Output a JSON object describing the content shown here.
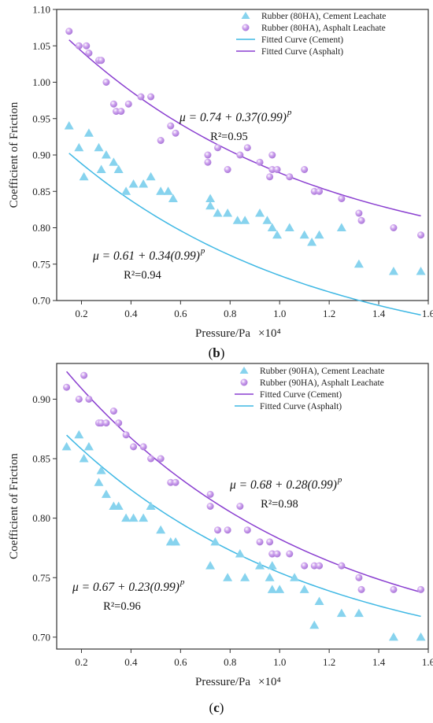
{
  "colors": {
    "cement": "#87d3ee",
    "asphalt": "#cfa5ee",
    "asphalt_line": "#8a3fd0",
    "cement_line": "#3fb8e4"
  },
  "chart_data": [
    {
      "type": "scatter",
      "panel_label": "b",
      "xlabel": "Pressure/Pa",
      "xlabel_scale": "×10⁴",
      "ylabel": "Coefficient of Friction",
      "xlim": [
        0.1,
        1.6
      ],
      "ylim": [
        0.7,
        1.1
      ],
      "xticks": [
        "0.2",
        "0.4",
        "0.6",
        "0.8",
        "1.0",
        "1.2",
        "1.4",
        "1.6"
      ],
      "yticks": [
        "0.70",
        "0.75",
        "0.80",
        "0.85",
        "0.90",
        "0.95",
        "1.00",
        "1.05",
        "1.10"
      ],
      "legend_position": "top-right",
      "series": [
        {
          "name": "Rubber (80HA), Cement Leachate",
          "marker": "triangle",
          "color_key": "cement",
          "points": [
            [
              0.15,
              0.94
            ],
            [
              0.19,
              0.91
            ],
            [
              0.21,
              0.87
            ],
            [
              0.23,
              0.93
            ],
            [
              0.27,
              0.91
            ],
            [
              0.28,
              0.88
            ],
            [
              0.3,
              0.9
            ],
            [
              0.33,
              0.89
            ],
            [
              0.35,
              0.88
            ],
            [
              0.38,
              0.85
            ],
            [
              0.41,
              0.86
            ],
            [
              0.45,
              0.86
            ],
            [
              0.48,
              0.87
            ],
            [
              0.52,
              0.85
            ],
            [
              0.55,
              0.85
            ],
            [
              0.57,
              0.84
            ],
            [
              0.72,
              0.84
            ],
            [
              0.72,
              0.83
            ],
            [
              0.75,
              0.82
            ],
            [
              0.79,
              0.82
            ],
            [
              0.83,
              0.81
            ],
            [
              0.86,
              0.81
            ],
            [
              0.92,
              0.82
            ],
            [
              0.95,
              0.81
            ],
            [
              0.97,
              0.8
            ],
            [
              0.99,
              0.79
            ],
            [
              1.04,
              0.8
            ],
            [
              1.1,
              0.79
            ],
            [
              1.13,
              0.78
            ],
            [
              1.16,
              0.79
            ],
            [
              1.25,
              0.8
            ],
            [
              1.32,
              0.75
            ],
            [
              1.46,
              0.74
            ],
            [
              1.57,
              0.74
            ]
          ]
        },
        {
          "name": "Rubber (80HA), Asphalt Leachate",
          "marker": "sphere",
          "color_key": "asphalt",
          "points": [
            [
              0.15,
              1.07
            ],
            [
              0.19,
              1.05
            ],
            [
              0.22,
              1.05
            ],
            [
              0.23,
              1.04
            ],
            [
              0.27,
              1.03
            ],
            [
              0.28,
              1.03
            ],
            [
              0.3,
              1.0
            ],
            [
              0.33,
              0.97
            ],
            [
              0.34,
              0.96
            ],
            [
              0.36,
              0.96
            ],
            [
              0.39,
              0.97
            ],
            [
              0.44,
              0.98
            ],
            [
              0.48,
              0.98
            ],
            [
              0.52,
              0.92
            ],
            [
              0.56,
              0.94
            ],
            [
              0.58,
              0.93
            ],
            [
              0.71,
              0.89
            ],
            [
              0.71,
              0.9
            ],
            [
              0.75,
              0.91
            ],
            [
              0.79,
              0.88
            ],
            [
              0.84,
              0.9
            ],
            [
              0.87,
              0.91
            ],
            [
              0.92,
              0.89
            ],
            [
              0.96,
              0.87
            ],
            [
              0.97,
              0.9
            ],
            [
              0.97,
              0.88
            ],
            [
              0.99,
              0.88
            ],
            [
              1.04,
              0.87
            ],
            [
              1.1,
              0.88
            ],
            [
              1.14,
              0.85
            ],
            [
              1.16,
              0.85
            ],
            [
              1.25,
              0.84
            ],
            [
              1.32,
              0.82
            ],
            [
              1.33,
              0.81
            ],
            [
              1.46,
              0.8
            ],
            [
              1.57,
              0.79
            ]
          ]
        }
      ],
      "fits": [
        {
          "name": "Fitted Curve (Cement)",
          "color_key": "cement_line",
          "a": 0.61,
          "b": 0.34,
          "c": 0.99,
          "equation": "μ = 0.61 + 0.34(0.99)",
          "exponent": "p",
          "r2_label": "R²=0.94"
        },
        {
          "name": "Fitted Curve (Asphalt)",
          "color_key": "asphalt_line",
          "a": 0.74,
          "b": 0.37,
          "c": 0.99,
          "equation": "μ = 0.74 + 0.37(0.99)",
          "exponent": "p",
          "r2_label": "R²=0.95"
        }
      ]
    },
    {
      "type": "scatter",
      "panel_label": "c",
      "xlabel": "Pressure/Pa",
      "xlabel_scale": "×10⁴",
      "ylabel": "Coefficient of Friction",
      "xlim": [
        0.1,
        1.6
      ],
      "ylim": [
        0.69,
        0.93
      ],
      "xticks": [
        "0.2",
        "0.4",
        "0.6",
        "0.8",
        "1.0",
        "1.2",
        "1.4",
        "1.6"
      ],
      "yticks": [
        "0.70",
        "0.75",
        "0.80",
        "0.85",
        "0.90"
      ],
      "legend_position": "top-right",
      "series": [
        {
          "name": "Rubber (90HA), Cement Leachate",
          "marker": "triangle",
          "color_key": "cement",
          "points": [
            [
              0.14,
              0.86
            ],
            [
              0.19,
              0.87
            ],
            [
              0.21,
              0.85
            ],
            [
              0.23,
              0.86
            ],
            [
              0.27,
              0.83
            ],
            [
              0.28,
              0.84
            ],
            [
              0.3,
              0.82
            ],
            [
              0.33,
              0.81
            ],
            [
              0.35,
              0.81
            ],
            [
              0.38,
              0.8
            ],
            [
              0.41,
              0.8
            ],
            [
              0.45,
              0.8
            ],
            [
              0.48,
              0.81
            ],
            [
              0.52,
              0.79
            ],
            [
              0.56,
              0.78
            ],
            [
              0.58,
              0.78
            ],
            [
              0.72,
              0.76
            ],
            [
              0.74,
              0.78
            ],
            [
              0.79,
              0.75
            ],
            [
              0.84,
              0.77
            ],
            [
              0.86,
              0.75
            ],
            [
              0.92,
              0.76
            ],
            [
              0.96,
              0.75
            ],
            [
              0.97,
              0.76
            ],
            [
              0.97,
              0.74
            ],
            [
              1.0,
              0.74
            ],
            [
              1.06,
              0.75
            ],
            [
              1.1,
              0.74
            ],
            [
              1.14,
              0.71
            ],
            [
              1.16,
              0.73
            ],
            [
              1.25,
              0.72
            ],
            [
              1.32,
              0.72
            ],
            [
              1.46,
              0.7
            ],
            [
              1.57,
              0.7
            ]
          ]
        },
        {
          "name": "Rubber (90HA), Asphalt Leachate",
          "marker": "sphere",
          "color_key": "asphalt",
          "points": [
            [
              0.14,
              0.91
            ],
            [
              0.19,
              0.9
            ],
            [
              0.21,
              0.92
            ],
            [
              0.23,
              0.9
            ],
            [
              0.27,
              0.88
            ],
            [
              0.28,
              0.88
            ],
            [
              0.3,
              0.88
            ],
            [
              0.33,
              0.89
            ],
            [
              0.35,
              0.88
            ],
            [
              0.38,
              0.87
            ],
            [
              0.41,
              0.86
            ],
            [
              0.45,
              0.86
            ],
            [
              0.48,
              0.85
            ],
            [
              0.52,
              0.85
            ],
            [
              0.56,
              0.83
            ],
            [
              0.58,
              0.83
            ],
            [
              0.72,
              0.81
            ],
            [
              0.72,
              0.82
            ],
            [
              0.75,
              0.79
            ],
            [
              0.79,
              0.79
            ],
            [
              0.84,
              0.81
            ],
            [
              0.87,
              0.79
            ],
            [
              0.92,
              0.78
            ],
            [
              0.96,
              0.78
            ],
            [
              0.97,
              0.77
            ],
            [
              0.97,
              0.77
            ],
            [
              0.99,
              0.77
            ],
            [
              1.04,
              0.77
            ],
            [
              1.1,
              0.76
            ],
            [
              1.14,
              0.76
            ],
            [
              1.16,
              0.76
            ],
            [
              1.25,
              0.76
            ],
            [
              1.32,
              0.75
            ],
            [
              1.33,
              0.74
            ],
            [
              1.46,
              0.74
            ],
            [
              1.57,
              0.74
            ]
          ]
        }
      ],
      "fits": [
        {
          "name": "Fitted Curve (Cement)",
          "color_key": "asphalt_line",
          "a": 0.68,
          "b": 0.28,
          "c": 0.99,
          "equation": "μ = 0.68 + 0.28(0.99)",
          "exponent": "p",
          "r2_label": "R²=0.98"
        },
        {
          "name": "Fitted Curve (Asphalt)",
          "color_key": "cement_line",
          "a": 0.67,
          "b": 0.23,
          "c": 0.99,
          "equation": "μ = 0.67 + 0.23(0.99)",
          "exponent": "p",
          "r2_label": "R²=0.96"
        }
      ]
    }
  ]
}
